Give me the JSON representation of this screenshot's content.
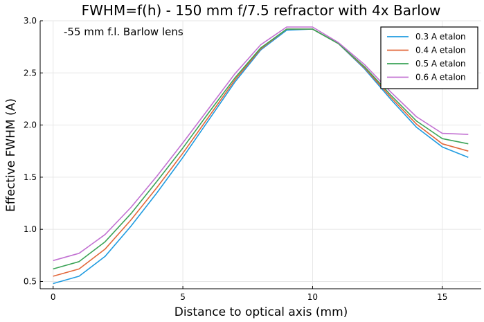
{
  "chart_data": {
    "type": "line",
    "title": "FWHM=f(h) - 150 mm f/7.5 refractor with 4x Barlow",
    "annotation": "-55 mm f.l. Barlow lens",
    "xlabel": "Distance to optical axis (mm)",
    "ylabel": "Effective FWHM (A)",
    "xlim": [
      -0.5,
      16.5
    ],
    "ylim": [
      0.43,
      3.0
    ],
    "xticks": [
      0,
      5,
      10,
      15
    ],
    "yticks": [
      0.5,
      1.0,
      1.5,
      2.0,
      2.5,
      3.0
    ],
    "xtick_labels": [
      "0",
      "5",
      "10",
      "15"
    ],
    "ytick_labels": [
      "0.5",
      "1.0",
      "1.5",
      "2.0",
      "2.5",
      "3.0"
    ],
    "grid": true,
    "legend_position": "top-right",
    "x": [
      0,
      1,
      2,
      3,
      4,
      5,
      6,
      7,
      8,
      9,
      10,
      11,
      12,
      13,
      14,
      15,
      16
    ],
    "series": [
      {
        "name": "0.3 A etalon",
        "color": "#1f9be0",
        "values": [
          0.48,
          0.55,
          0.74,
          1.03,
          1.35,
          1.69,
          2.05,
          2.41,
          2.72,
          2.91,
          2.92,
          2.78,
          2.54,
          2.25,
          1.98,
          1.79,
          1.69
        ]
      },
      {
        "name": "0.4 A etalon",
        "color": "#e2673a",
        "values": [
          0.55,
          0.62,
          0.81,
          1.09,
          1.4,
          1.73,
          2.08,
          2.43,
          2.73,
          2.92,
          2.92,
          2.78,
          2.55,
          2.27,
          2.01,
          1.82,
          1.75
        ]
      },
      {
        "name": "0.5 A etalon",
        "color": "#3aa356",
        "values": [
          0.62,
          0.69,
          0.88,
          1.15,
          1.46,
          1.78,
          2.12,
          2.45,
          2.74,
          2.92,
          2.92,
          2.78,
          2.56,
          2.29,
          2.04,
          1.87,
          1.82
        ]
      },
      {
        "name": "0.6 A etalon",
        "color": "#c271d2",
        "values": [
          0.7,
          0.77,
          0.95,
          1.21,
          1.51,
          1.83,
          2.16,
          2.49,
          2.77,
          2.94,
          2.94,
          2.79,
          2.58,
          2.32,
          2.08,
          1.92,
          1.91
        ]
      }
    ]
  }
}
